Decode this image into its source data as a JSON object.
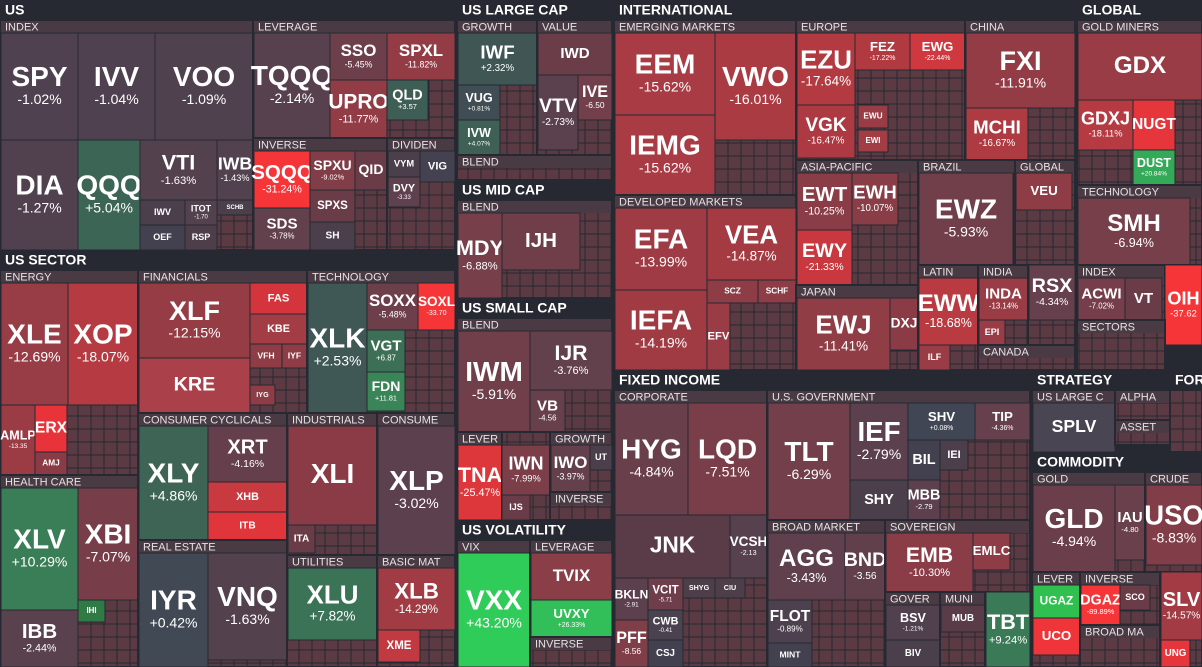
{
  "sections": [
    {
      "title": "US",
      "groups": [
        {
          "label": "INDEX",
          "tiles": [
            {
              "ticker": "SPY",
              "change": "-1.02%"
            },
            {
              "ticker": "IVV",
              "change": "-1.04%"
            },
            {
              "ticker": "VOO",
              "change": "-1.09%"
            },
            {
              "ticker": "DIA",
              "change": "-1.27%"
            },
            {
              "ticker": "QQQ",
              "change": "+5.04%"
            },
            {
              "ticker": "VTI",
              "change": "-1.63%"
            },
            {
              "ticker": "IWB",
              "change": "-1.43%"
            },
            {
              "ticker": "IWV",
              "color": "#4a3f4a"
            },
            {
              "ticker": "ITOT",
              "change": "-1.70"
            },
            {
              "ticker": "SCHB",
              "color": "#4a3f4a"
            },
            {
              "ticker": "OEF",
              "color": "#43414f"
            },
            {
              "ticker": "RSP",
              "color": "#4d3e49"
            }
          ]
        },
        {
          "label": "LEVERAGE",
          "tiles": [
            {
              "ticker": "TQQQ",
              "change": "-2.14%"
            },
            {
              "ticker": "SSO",
              "change": "-5.45%"
            },
            {
              "ticker": "SPXL",
              "change": "-11.82%"
            },
            {
              "ticker": "UPRO",
              "change": "-11.77%"
            },
            {
              "ticker": "QLD",
              "change": "+3.57"
            }
          ]
        },
        {
          "label": "INVERSE",
          "tiles": [
            {
              "ticker": "SQQQ",
              "change": "-31.24%"
            },
            {
              "ticker": "SPXU",
              "change": "-9.02%"
            },
            {
              "ticker": "QID",
              "color": "#6a3c47"
            },
            {
              "ticker": "SPXS",
              "color": "#6a3c47"
            },
            {
              "ticker": "SDS",
              "change": "-3.78%"
            },
            {
              "ticker": "SH",
              "color": "#4a3f4a"
            }
          ]
        },
        {
          "label": "DIVIDEN",
          "tiles": [
            {
              "ticker": "VYM",
              "color": "#4a3f4a"
            },
            {
              "ticker": "VIG",
              "color": "#444250"
            },
            {
              "ticker": "DVY",
              "change": "-3.33"
            }
          ]
        }
      ]
    },
    {
      "title": "US SECTOR",
      "groups": [
        {
          "label": "ENERGY",
          "tiles": [
            {
              "ticker": "XLE",
              "change": "-12.69%"
            },
            {
              "ticker": "XOP",
              "change": "-18.07%"
            },
            {
              "ticker": "AMLP",
              "change": "-13.35"
            },
            {
              "ticker": "ERX",
              "color": "#e8333a"
            },
            {
              "ticker": "AMJ",
              "color": "#8a3b46"
            }
          ]
        },
        {
          "label": "HEALTH CARE",
          "tiles": [
            {
              "ticker": "XLV",
              "change": "+10.29%"
            },
            {
              "ticker": "XBI",
              "change": "-7.07%"
            },
            {
              "ticker": "IBB",
              "change": "-2.44%"
            },
            {
              "ticker": "IHI",
              "color": "#2f7a45"
            }
          ]
        },
        {
          "label": "FINANCIALS",
          "tiles": [
            {
              "ticker": "XLF",
              "change": "-12.15%"
            },
            {
              "ticker": "KRE",
              "color": "#a9404a"
            },
            {
              "ticker": "FAS",
              "color": "#d4353c"
            },
            {
              "ticker": "KBE",
              "color": "#a33d45"
            },
            {
              "ticker": "VFH",
              "color": "#8e3c46"
            },
            {
              "ticker": "IYF",
              "color": "#8e3c46"
            },
            {
              "ticker": "IYG",
              "color": "#8e3c46"
            }
          ]
        },
        {
          "label": "TECHNOLOGY",
          "tiles": [
            {
              "ticker": "XLK",
              "change": "+2.53%"
            },
            {
              "ticker": "SOXX",
              "change": "-5.48%"
            },
            {
              "ticker": "SOXL",
              "change": "-33.70"
            },
            {
              "ticker": "VGT",
              "change": "+6.87"
            },
            {
              "ticker": "FDN",
              "change": "+11.81"
            }
          ]
        },
        {
          "label": "CONSUMER CYCLICALS",
          "tiles": [
            {
              "ticker": "XLY",
              "change": "+4.86%"
            },
            {
              "ticker": "XRT",
              "change": "-4.16%"
            },
            {
              "ticker": "XHB",
              "color": "#c83a40"
            },
            {
              "ticker": "ITB",
              "color": "#e0363b"
            }
          ]
        },
        {
          "label": "INDUSTRIALS",
          "tiles": [
            {
              "ticker": "XLI",
              "color": "#8a3b46"
            },
            {
              "ticker": "ITA",
              "color": "#6a3c47"
            }
          ]
        },
        {
          "label": "CONSUME",
          "tiles": [
            {
              "ticker": "XLP",
              "change": "-3.02%"
            }
          ]
        },
        {
          "label": "REAL ESTATE",
          "tiles": [
            {
              "ticker": "IYR",
              "change": "+0.42%"
            },
            {
              "ticker": "VNQ",
              "change": "-1.63%"
            }
          ]
        },
        {
          "label": "UTILITIES",
          "tiles": [
            {
              "ticker": "XLU",
              "change": "+7.82%"
            }
          ]
        },
        {
          "label": "BASIC MAT",
          "tiles": [
            {
              "ticker": "XLB",
              "change": "-14.29%"
            },
            {
              "ticker": "XME",
              "color": "#c23a41"
            }
          ]
        }
      ]
    },
    {
      "title": "US LARGE CAP",
      "groups": [
        {
          "label": "GROWTH",
          "tiles": [
            {
              "ticker": "IWF",
              "change": "+2.32%"
            },
            {
              "ticker": "VUG",
              "change": "+0.81%"
            },
            {
              "ticker": "IVW",
              "change": "+4.07%"
            }
          ]
        },
        {
          "label": "VALUE",
          "tiles": [
            {
              "ticker": "IWD",
              "color": "#6a3d48"
            },
            {
              "ticker": "VTV",
              "change": "-2.73%"
            },
            {
              "ticker": "IVE",
              "change": "-6.50"
            }
          ]
        },
        {
          "label": "BLEND",
          "tiles": []
        }
      ]
    },
    {
      "title": "US MID CAP",
      "groups": [
        {
          "label": "BLEND",
          "tiles": [
            {
              "ticker": "MDY",
              "change": "-6.88%"
            },
            {
              "ticker": "IJH",
              "color": "#6f3e48"
            }
          ]
        }
      ]
    },
    {
      "title": "US SMALL CAP",
      "groups": [
        {
          "label": "BLEND",
          "tiles": [
            {
              "ticker": "IWM",
              "change": "-5.91%"
            },
            {
              "ticker": "IJR",
              "change": "-3.76%"
            },
            {
              "ticker": "VB",
              "change": "-4.56"
            }
          ]
        },
        {
          "label": "LEVER",
          "tiles": [
            {
              "ticker": "TNA",
              "change": "-25.47%"
            }
          ]
        },
        {
          "tiles": [
            {
              "ticker": "IWN",
              "change": "-7.99%"
            },
            {
              "ticker": "IJS",
              "color": "#6a3c47"
            }
          ]
        },
        {
          "label": "GROWTH",
          "tiles": [
            {
              "ticker": "IWO",
              "change": "-3.97%"
            },
            {
              "ticker": "UT",
              "color": "#4a3f4a"
            }
          ]
        },
        {
          "label": "INVERSE",
          "tiles": []
        }
      ]
    },
    {
      "title": "US VOLATILITY",
      "groups": [
        {
          "label": "VIX",
          "tiles": [
            {
              "ticker": "VXX",
              "change": "+43.20%"
            }
          ]
        },
        {
          "label": "LEVERAGE",
          "tiles": [
            {
              "ticker": "TVIX",
              "color": "#8a3e48"
            },
            {
              "ticker": "UVXY",
              "change": "+26.33%"
            }
          ]
        },
        {
          "label": "INVERSE",
          "tiles": []
        }
      ]
    },
    {
      "title": "INTERNATIONAL",
      "groups": [
        {
          "label": "EMERGING MARKETS",
          "tiles": [
            {
              "ticker": "EEM",
              "change": "-15.62%"
            },
            {
              "ticker": "VWO",
              "change": "-16.01%"
            },
            {
              "ticker": "IEMG",
              "change": "-15.62%"
            }
          ]
        },
        {
          "label": "EUROPE",
          "tiles": [
            {
              "ticker": "EZU",
              "change": "-17.64%"
            },
            {
              "ticker": "FEZ",
              "change": "-17.22%"
            },
            {
              "ticker": "EWG",
              "change": "-22.44%"
            },
            {
              "ticker": "VGK",
              "change": "-16.47%"
            },
            {
              "ticker": "EWU",
              "color": "#9a3c46"
            },
            {
              "ticker": "EWI",
              "color": "#a33d45"
            }
          ]
        },
        {
          "label": "CHINA",
          "tiles": [
            {
              "ticker": "FXI",
              "change": "-11.91%"
            },
            {
              "ticker": "MCHI",
              "change": "-16.67%"
            }
          ]
        },
        {
          "label": "ASIA-PACIFIC",
          "tiles": [
            {
              "ticker": "EWT",
              "change": "-10.25%"
            },
            {
              "ticker": "EWH",
              "change": "-10.07%"
            },
            {
              "ticker": "EWY",
              "change": "-21.33%"
            }
          ]
        },
        {
          "label": "BRAZIL",
          "tiles": [
            {
              "ticker": "EWZ",
              "change": "-5.93%"
            }
          ]
        },
        {
          "label": "GLOBAL",
          "tiles": [
            {
              "ticker": "VEU",
              "color": "#8e3c46"
            }
          ]
        },
        {
          "label": "DEVELOPED MARKETS",
          "tiles": [
            {
              "ticker": "EFA",
              "change": "-13.99%"
            },
            {
              "ticker": "VEA",
              "change": "-14.87%"
            },
            {
              "ticker": "SCZ",
              "color": "#8e3c46"
            },
            {
              "ticker": "SCHF",
              "color": "#8e3c46"
            },
            {
              "ticker": "IEFA",
              "change": "-14.19%"
            },
            {
              "ticker": "EFV",
              "color": "#9a3c46"
            }
          ]
        },
        {
          "label": "JAPAN",
          "tiles": [
            {
              "ticker": "EWJ",
              "change": "-11.41%"
            },
            {
              "ticker": "DXJ",
              "color": "#8a3b46"
            }
          ]
        },
        {
          "label": "LATIN",
          "tiles": [
            {
              "ticker": "EWW",
              "change": "-18.68%"
            },
            {
              "ticker": "ILF",
              "color": "#9a3c46"
            }
          ]
        },
        {
          "label": "INDIA",
          "tiles": [
            {
              "ticker": "INDA",
              "change": "-13.14%"
            },
            {
              "ticker": "EPI",
              "color": "#9a3c46"
            }
          ]
        },
        {
          "tiles": [
            {
              "ticker": "RSX",
              "change": "-4.34%"
            }
          ]
        },
        {
          "label": "CANADA",
          "tiles": []
        }
      ]
    },
    {
      "title": "FIXED INCOME",
      "groups": [
        {
          "label": "CORPORATE",
          "tiles": [
            {
              "ticker": "HYG",
              "change": "-4.84%"
            },
            {
              "ticker": "LQD",
              "change": "-7.51%"
            },
            {
              "ticker": "JNK",
              "color": "#5a3c48"
            },
            {
              "ticker": "VCSH",
              "change": "-2.13"
            },
            {
              "ticker": "BKLN",
              "change": "-2.91"
            },
            {
              "ticker": "VCIT",
              "change": "-5.71"
            },
            {
              "ticker": "SHYG",
              "color": "#4d3e49"
            },
            {
              "ticker": "CIU",
              "color": "#4d3e49"
            },
            {
              "ticker": "CWB",
              "change": "-0.41"
            },
            {
              "ticker": "PFF",
              "change": "-8.56"
            },
            {
              "ticker": "CSJ",
              "color": "#43414f"
            }
          ]
        },
        {
          "label": "U.S. GOVERNMENT",
          "tiles": [
            {
              "ticker": "TLT",
              "change": "-6.29%"
            },
            {
              "ticker": "IEF",
              "change": "-2.79%"
            },
            {
              "ticker": "SHY",
              "color": "#4b3f4b"
            },
            {
              "ticker": "SHV",
              "change": "+0.08%"
            },
            {
              "ticker": "TIP",
              "change": "-4.36%"
            },
            {
              "ticker": "BIL",
              "color": "#43414f"
            },
            {
              "ticker": "IEI",
              "color": "#4b3f4b"
            },
            {
              "ticker": "MBB",
              "change": "-2.79"
            }
          ]
        },
        {
          "label": "BROAD MARKET",
          "tiles": [
            {
              "ticker": "AGG",
              "change": "-3.43%"
            },
            {
              "ticker": "BND",
              "change": "-3.56"
            },
            {
              "ticker": "FLOT",
              "change": "-0.89%"
            },
            {
              "ticker": "MINT",
              "color": "#43414f"
            }
          ]
        },
        {
          "label": "SOVEREIGN",
          "tiles": [
            {
              "ticker": "EMB",
              "change": "-10.30%"
            },
            {
              "ticker": "EMLC",
              "color": "#8e3c46"
            }
          ]
        },
        {
          "label": "GOVER",
          "tiles": [
            {
              "ticker": "BSV",
              "change": "-1.21%"
            },
            {
              "ticker": "BIV",
              "color": "#4b3f4b"
            }
          ]
        },
        {
          "label": "MUNI",
          "tiles": [
            {
              "ticker": "MUB",
              "color": "#5a3c48"
            }
          ]
        },
        {
          "tiles": [
            {
              "ticker": "TBT",
              "change": "+9.24%"
            }
          ]
        }
      ]
    },
    {
      "title": "GLOBAL",
      "groups": [
        {
          "label": "GOLD MINERS",
          "tiles": [
            {
              "ticker": "GDX",
              "color": "#9a3c46"
            },
            {
              "ticker": "GDXJ",
              "change": "-18.11%"
            },
            {
              "ticker": "NUGT",
              "color": "#e6353b"
            },
            {
              "ticker": "DUST",
              "change": "+20.84%"
            }
          ]
        },
        {
          "label": "TECHNOLOGY",
          "tiles": [
            {
              "ticker": "SMH",
              "change": "-6.94%"
            }
          ]
        },
        {
          "label": "INDEX",
          "tiles": [
            {
              "ticker": "ACWI",
              "change": "-7.02%"
            },
            {
              "ticker": "VT",
              "color": "#6a3c47"
            }
          ]
        },
        {
          "tiles": [
            {
              "ticker": "OIH",
              "change": "-37.62"
            }
          ]
        },
        {
          "label": "SECTORS",
          "tiles": []
        }
      ]
    },
    {
      "title": "STRATEGY",
      "groups": [
        {
          "label": "US LARGE C",
          "tiles": [
            {
              "ticker": "SPLV",
              "color": "#4a4552"
            }
          ]
        },
        {
          "label": "ALPHA",
          "tiles": []
        },
        {
          "label": "ASSET",
          "tiles": []
        }
      ]
    },
    {
      "title": "FOR",
      "groups": [
        {
          "tiles": []
        }
      ]
    },
    {
      "title": "COMMODITY",
      "groups": [
        {
          "label": "GOLD",
          "tiles": [
            {
              "ticker": "GLD",
              "change": "-4.94%"
            },
            {
              "ticker": "IAU",
              "change": "-4.80"
            }
          ]
        },
        {
          "label": "CRUDE",
          "tiles": [
            {
              "ticker": "USO",
              "change": "-8.83%"
            }
          ]
        },
        {
          "label": "LEVER",
          "tiles": [
            {
              "ticker": "UGAZ",
              "color": "#30c04f"
            },
            {
              "ticker": "UCO",
              "color": "#f0353a"
            }
          ]
        },
        {
          "label": "INVERSE",
          "tiles": [
            {
              "ticker": "DGAZ",
              "change": "-89.89%"
            },
            {
              "ticker": "SCO",
              "color": "#6a3c47"
            }
          ]
        },
        {
          "label": "BROAD MA",
          "tiles": []
        },
        {
          "tiles": [
            {
              "ticker": "SLV",
              "change": "-14.57%"
            },
            {
              "ticker": "UNG",
              "color": "#e6353b"
            }
          ]
        }
      ]
    }
  ]
}
